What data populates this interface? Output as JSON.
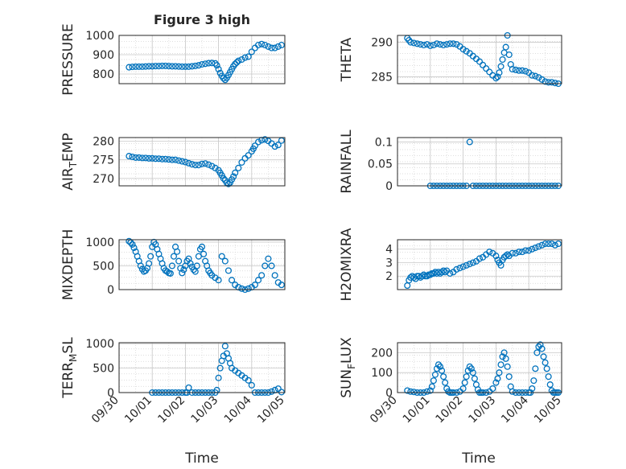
{
  "figure": {
    "title": "Figure 3 high",
    "xlabel": "Time",
    "xticks": [
      "09/30",
      "10/01",
      "10/02",
      "10/03",
      "10/04",
      "10/05"
    ],
    "marker_color": "#0072BD",
    "grid": "major and minor, dotted"
  },
  "chart_data": [
    {
      "type": "scatter",
      "title": "Figure 3 high",
      "ylabel": "PRESSURE",
      "xlabel": "",
      "xlim": [
        0,
        5
      ],
      "ylim": [
        750,
        1000
      ],
      "yticks": [
        "1000",
        "900",
        "800"
      ],
      "x": [
        0.3,
        0.4,
        0.5,
        0.6,
        0.7,
        0.8,
        0.9,
        1.0,
        1.1,
        1.2,
        1.3,
        1.4,
        1.5,
        1.6,
        1.7,
        1.8,
        1.9,
        2.0,
        2.1,
        2.2,
        2.3,
        2.4,
        2.5,
        2.6,
        2.7,
        2.8,
        2.9,
        2.95,
        3.0,
        3.05,
        3.1,
        3.15,
        3.2,
        3.25,
        3.3,
        3.35,
        3.4,
        3.45,
        3.5,
        3.55,
        3.6,
        3.7,
        3.8,
        3.9,
        4.0,
        4.1,
        4.2,
        4.3,
        4.4,
        4.5,
        4.6,
        4.7,
        4.8,
        4.9
      ],
      "y": [
        835,
        837,
        838,
        838,
        838,
        839,
        840,
        840,
        841,
        841,
        842,
        842,
        841,
        840,
        840,
        839,
        838,
        838,
        838,
        840,
        842,
        845,
        850,
        853,
        856,
        857,
        855,
        845,
        825,
        805,
        790,
        778,
        770,
        780,
        795,
        810,
        825,
        840,
        852,
        860,
        868,
        875,
        885,
        890,
        915,
        935,
        950,
        955,
        950,
        942,
        935,
        935,
        942,
        950
      ]
    },
    {
      "type": "scatter",
      "ylabel": "THETA",
      "xlabel": "",
      "xlim": [
        0,
        5
      ],
      "ylim": [
        284,
        291
      ],
      "yticks": [
        "290",
        "285"
      ],
      "x": [
        0.3,
        0.35,
        0.4,
        0.5,
        0.6,
        0.7,
        0.8,
        0.9,
        1.0,
        1.1,
        1.2,
        1.3,
        1.4,
        1.5,
        1.6,
        1.7,
        1.8,
        1.9,
        2.0,
        2.1,
        2.2,
        2.3,
        2.4,
        2.5,
        2.6,
        2.7,
        2.8,
        2.9,
        3.0,
        3.05,
        3.1,
        3.15,
        3.2,
        3.25,
        3.3,
        3.35,
        3.4,
        3.45,
        3.5,
        3.6,
        3.7,
        3.8,
        3.9,
        4.0,
        4.1,
        4.2,
        4.3,
        4.4,
        4.5,
        4.6,
        4.7,
        4.8,
        4.9
      ],
      "y": [
        290.6,
        290.3,
        290.0,
        289.9,
        289.8,
        289.7,
        289.6,
        289.7,
        289.5,
        289.6,
        289.8,
        289.7,
        289.6,
        289.7,
        289.8,
        289.8,
        289.7,
        289.4,
        289.0,
        288.7,
        288.4,
        288.0,
        287.6,
        287.2,
        286.7,
        286.2,
        285.7,
        285.2,
        284.8,
        285.0,
        285.6,
        286.5,
        287.5,
        288.5,
        289.3,
        291.0,
        288.2,
        286.8,
        286.1,
        286.0,
        285.9,
        285.9,
        285.8,
        285.6,
        285.2,
        285.1,
        284.9,
        284.6,
        284.3,
        284.2,
        284.2,
        284.1,
        284.0
      ]
    },
    {
      "type": "scatter",
      "ylabel": "AIR_TEMP",
      "ylabel_main": "AIR",
      "ylabel_sub": "T",
      "ylabel_rest": "EMP",
      "xlabel": "",
      "xlim": [
        0,
        5
      ],
      "ylim": [
        268,
        281
      ],
      "yticks": [
        "280",
        "275",
        "270"
      ],
      "x": [
        0.3,
        0.4,
        0.5,
        0.6,
        0.7,
        0.8,
        0.9,
        1.0,
        1.1,
        1.2,
        1.3,
        1.4,
        1.5,
        1.6,
        1.7,
        1.8,
        1.9,
        2.0,
        2.1,
        2.2,
        2.3,
        2.4,
        2.5,
        2.6,
        2.7,
        2.8,
        2.9,
        3.0,
        3.05,
        3.1,
        3.15,
        3.2,
        3.25,
        3.3,
        3.35,
        3.4,
        3.45,
        3.5,
        3.6,
        3.7,
        3.8,
        3.9,
        4.0,
        4.05,
        4.1,
        4.2,
        4.3,
        4.4,
        4.5,
        4.6,
        4.7,
        4.8,
        4.9
      ],
      "y": [
        276.0,
        275.8,
        275.6,
        275.6,
        275.5,
        275.5,
        275.4,
        275.4,
        275.3,
        275.3,
        275.2,
        275.2,
        275.1,
        275.0,
        275.0,
        274.8,
        274.6,
        274.4,
        274.1,
        273.8,
        273.6,
        273.6,
        273.9,
        274.0,
        273.7,
        273.3,
        272.8,
        272.2,
        271.5,
        270.8,
        270.0,
        269.5,
        268.8,
        268.5,
        268.9,
        269.7,
        270.5,
        271.5,
        272.8,
        274.3,
        275.4,
        276.2,
        277.3,
        278.0,
        278.8,
        279.8,
        280.3,
        280.5,
        280.1,
        279.4,
        278.6,
        279.0,
        280.2
      ]
    },
    {
      "type": "scatter",
      "ylabel": "RAINFALL",
      "xlabel": "",
      "xlim": [
        0,
        5
      ],
      "ylim": [
        0,
        0.11
      ],
      "yticks": [
        "0.1",
        "0.05",
        "0"
      ],
      "x": [
        1.0,
        1.1,
        1.2,
        1.3,
        1.4,
        1.5,
        1.6,
        1.7,
        1.8,
        1.9,
        2.0,
        2.1,
        2.2,
        2.3,
        2.4,
        2.5,
        2.6,
        2.7,
        2.8,
        2.9,
        3.0,
        3.1,
        3.2,
        3.3,
        3.4,
        3.5,
        3.6,
        3.7,
        3.8,
        3.9,
        4.0,
        4.1,
        4.2,
        4.3,
        4.4,
        4.5,
        4.6,
        4.7,
        4.8,
        4.9
      ],
      "y": [
        0,
        0,
        0,
        0,
        0,
        0,
        0,
        0,
        0,
        0,
        0,
        0,
        0.1,
        0,
        0,
        0,
        0,
        0,
        0,
        0,
        0,
        0,
        0,
        0,
        0,
        0,
        0,
        0,
        0,
        0,
        0,
        0,
        0,
        0,
        0,
        0,
        0,
        0,
        0,
        0
      ]
    },
    {
      "type": "scatter",
      "ylabel": "MIXDEPTH",
      "xlabel": "",
      "xlim": [
        0,
        5
      ],
      "ylim": [
        0,
        1050
      ],
      "yticks": [
        "1000",
        "500",
        "0"
      ],
      "x": [
        0.3,
        0.35,
        0.4,
        0.45,
        0.5,
        0.55,
        0.6,
        0.65,
        0.7,
        0.75,
        0.8,
        0.85,
        0.9,
        0.95,
        1.0,
        1.05,
        1.1,
        1.15,
        1.2,
        1.25,
        1.3,
        1.35,
        1.4,
        1.45,
        1.5,
        1.55,
        1.6,
        1.65,
        1.7,
        1.75,
        1.8,
        1.85,
        1.9,
        1.95,
        2.0,
        2.05,
        2.1,
        2.15,
        2.2,
        2.25,
        2.3,
        2.35,
        2.4,
        2.45,
        2.5,
        2.55,
        2.6,
        2.65,
        2.7,
        2.75,
        2.8,
        2.9,
        3.0,
        3.1,
        3.2,
        3.3,
        3.4,
        3.5,
        3.6,
        3.7,
        3.8,
        3.9,
        4.0,
        4.1,
        4.2,
        4.3,
        4.4,
        4.5,
        4.6,
        4.7,
        4.8,
        4.9
      ],
      "y": [
        1020,
        990,
        950,
        880,
        800,
        700,
        600,
        500,
        430,
        380,
        400,
        450,
        550,
        700,
        900,
        1000,
        950,
        850,
        750,
        650,
        550,
        450,
        400,
        380,
        350,
        340,
        500,
        700,
        900,
        800,
        600,
        450,
        350,
        420,
        500,
        600,
        650,
        550,
        480,
        420,
        380,
        500,
        700,
        850,
        900,
        750,
        600,
        500,
        400,
        350,
        300,
        250,
        200,
        700,
        600,
        400,
        200,
        100,
        50,
        20,
        0,
        20,
        50,
        100,
        200,
        300,
        500,
        650,
        500,
        300,
        150,
        100
      ]
    },
    {
      "type": "scatter",
      "ylabel": "H2OMIXRA",
      "xlabel": "",
      "xlim": [
        0,
        5
      ],
      "ylim": [
        1,
        4.7
      ],
      "yticks": [
        "4",
        "3",
        "2"
      ],
      "x": [
        0.3,
        0.35,
        0.4,
        0.45,
        0.5,
        0.55,
        0.6,
        0.65,
        0.7,
        0.75,
        0.8,
        0.85,
        0.9,
        0.95,
        1.0,
        1.05,
        1.1,
        1.15,
        1.2,
        1.25,
        1.3,
        1.35,
        1.4,
        1.45,
        1.5,
        1.6,
        1.7,
        1.8,
        1.9,
        2.0,
        2.1,
        2.2,
        2.3,
        2.4,
        2.5,
        2.6,
        2.7,
        2.8,
        2.9,
        3.0,
        3.05,
        3.1,
        3.15,
        3.2,
        3.25,
        3.3,
        3.35,
        3.4,
        3.5,
        3.6,
        3.7,
        3.8,
        3.9,
        4.0,
        4.1,
        4.2,
        4.3,
        4.4,
        4.5,
        4.6,
        4.7,
        4.8,
        4.9
      ],
      "y": [
        1.3,
        1.7,
        1.9,
        2.0,
        1.9,
        1.8,
        2.0,
        2.0,
        1.9,
        2.0,
        2.1,
        2.0,
        2.0,
        2.1,
        2.1,
        2.2,
        2.2,
        2.3,
        2.2,
        2.3,
        2.2,
        2.3,
        2.4,
        2.3,
        2.4,
        2.2,
        2.3,
        2.5,
        2.6,
        2.7,
        2.8,
        2.9,
        3.0,
        3.1,
        3.3,
        3.4,
        3.6,
        3.8,
        3.7,
        3.5,
        3.2,
        3.0,
        2.8,
        3.2,
        3.4,
        3.5,
        3.6,
        3.5,
        3.7,
        3.7,
        3.8,
        3.8,
        3.9,
        3.9,
        4.0,
        4.1,
        4.2,
        4.3,
        4.4,
        4.4,
        4.4,
        4.3,
        4.4
      ]
    },
    {
      "type": "scatter",
      "ylabel": "TERR_MSL",
      "ylabel_main": "TERR",
      "ylabel_sub": "M",
      "ylabel_rest": "SL",
      "xlabel": "Time",
      "xlim": [
        0,
        5
      ],
      "ylim": [
        0,
        1020
      ],
      "yticks": [
        "1000",
        "500",
        "0"
      ],
      "x": [
        1.0,
        1.1,
        1.2,
        1.3,
        1.4,
        1.5,
        1.6,
        1.7,
        1.8,
        1.9,
        2.0,
        2.05,
        2.1,
        2.2,
        2.3,
        2.4,
        2.5,
        2.6,
        2.7,
        2.8,
        2.9,
        2.95,
        3.0,
        3.05,
        3.1,
        3.15,
        3.2,
        3.25,
        3.3,
        3.35,
        3.4,
        3.5,
        3.6,
        3.7,
        3.8,
        3.9,
        4.0,
        4.1,
        4.2,
        4.3,
        4.4,
        4.5,
        4.6,
        4.7,
        4.8,
        4.9
      ],
      "y": [
        0,
        0,
        0,
        0,
        0,
        0,
        0,
        0,
        0,
        0,
        0,
        0,
        100,
        0,
        0,
        0,
        0,
        0,
        0,
        0,
        0,
        50,
        300,
        500,
        650,
        750,
        950,
        800,
        700,
        600,
        500,
        450,
        400,
        350,
        300,
        250,
        150,
        0,
        0,
        0,
        0,
        0,
        20,
        50,
        80,
        10
      ]
    },
    {
      "type": "scatter",
      "ylabel": "SUN_FLUX",
      "ylabel_main": "SUN",
      "ylabel_sub": "F",
      "ylabel_rest": "LUX",
      "xlabel": "Time",
      "xlim": [
        0,
        5
      ],
      "ylim": [
        0,
        250
      ],
      "yticks": [
        "200",
        "100",
        "0"
      ],
      "x": [
        0.3,
        0.4,
        0.5,
        0.6,
        0.7,
        0.8,
        0.9,
        1.0,
        1.05,
        1.1,
        1.15,
        1.2,
        1.25,
        1.3,
        1.35,
        1.4,
        1.45,
        1.5,
        1.55,
        1.6,
        1.65,
        1.7,
        1.8,
        1.9,
        2.0,
        2.05,
        2.1,
        2.15,
        2.2,
        2.25,
        2.3,
        2.35,
        2.4,
        2.45,
        2.5,
        2.55,
        2.6,
        2.7,
        2.8,
        2.9,
        3.0,
        3.05,
        3.1,
        3.15,
        3.2,
        3.25,
        3.3,
        3.35,
        3.4,
        3.45,
        3.5,
        3.6,
        3.7,
        3.8,
        3.9,
        4.0,
        4.05,
        4.1,
        4.15,
        4.2,
        4.25,
        4.3,
        4.35,
        4.4,
        4.45,
        4.5,
        4.55,
        4.6,
        4.65,
        4.7,
        4.75,
        4.8,
        4.85,
        4.9
      ],
      "y": [
        10,
        5,
        3,
        0,
        0,
        0,
        5,
        10,
        30,
        60,
        90,
        120,
        140,
        130,
        110,
        80,
        50,
        20,
        5,
        0,
        0,
        0,
        0,
        5,
        20,
        50,
        80,
        110,
        130,
        120,
        100,
        70,
        40,
        15,
        0,
        0,
        0,
        0,
        5,
        20,
        50,
        70,
        100,
        140,
        180,
        200,
        170,
        130,
        80,
        30,
        5,
        0,
        0,
        0,
        0,
        0,
        0,
        20,
        60,
        120,
        200,
        230,
        240,
        220,
        180,
        150,
        120,
        80,
        40,
        10,
        0,
        0,
        0,
        0
      ]
    }
  ]
}
